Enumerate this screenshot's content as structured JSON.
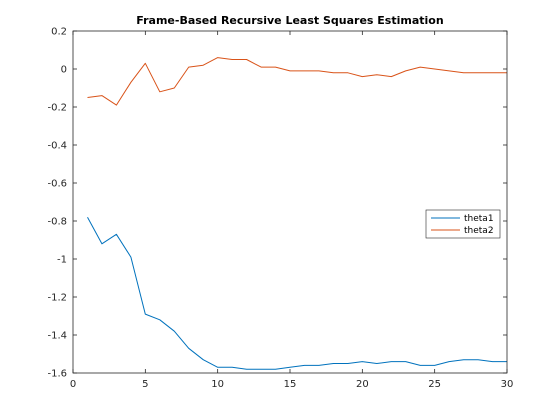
{
  "chart_data": {
    "type": "line",
    "title": "Frame-Based Recursive Least Squares Estimation",
    "xlabel": "",
    "ylabel": "",
    "xlim": [
      0,
      30
    ],
    "ylim": [
      -1.6,
      0.2
    ],
    "xticks": [
      0,
      5,
      10,
      15,
      20,
      25,
      30
    ],
    "xtick_labels": [
      "0",
      "5",
      "10",
      "15",
      "20",
      "25",
      "30"
    ],
    "yticks": [
      0.2,
      0,
      -0.2,
      -0.4,
      -0.6,
      -0.8,
      -1,
      -1.2,
      -1.4,
      -1.6
    ],
    "ytick_labels": [
      "0.2",
      "0",
      "-0.2",
      "-0.4",
      "-0.6",
      "-0.8",
      "-1",
      "-1.2",
      "-1.4",
      "-1.6"
    ],
    "grid": false,
    "legend_position": "right",
    "x": [
      1,
      2,
      3,
      4,
      5,
      6,
      7,
      8,
      9,
      10,
      11,
      12,
      13,
      14,
      15,
      16,
      17,
      18,
      19,
      20,
      21,
      22,
      23,
      24,
      25,
      26,
      27,
      28,
      29,
      30
    ],
    "series": [
      {
        "name": "theta1",
        "color": "#0072BD",
        "values": [
          -0.78,
          -0.92,
          -0.87,
          -0.99,
          -1.29,
          -1.32,
          -1.38,
          -1.47,
          -1.53,
          -1.57,
          -1.57,
          -1.58,
          -1.58,
          -1.58,
          -1.57,
          -1.56,
          -1.56,
          -1.55,
          -1.55,
          -1.54,
          -1.55,
          -1.54,
          -1.54,
          -1.56,
          -1.56,
          -1.54,
          -1.53,
          -1.53,
          -1.54,
          -1.54
        ]
      },
      {
        "name": "theta2",
        "color": "#D95319",
        "values": [
          -0.15,
          -0.14,
          -0.19,
          -0.07,
          0.03,
          -0.12,
          -0.1,
          0.01,
          0.02,
          0.06,
          0.05,
          0.05,
          0.01,
          0.01,
          -0.01,
          -0.01,
          -0.01,
          -0.02,
          -0.02,
          -0.04,
          -0.03,
          -0.04,
          -0.01,
          0.01,
          0.0,
          -0.01,
          -0.02,
          -0.02,
          -0.02,
          -0.02
        ]
      }
    ]
  }
}
